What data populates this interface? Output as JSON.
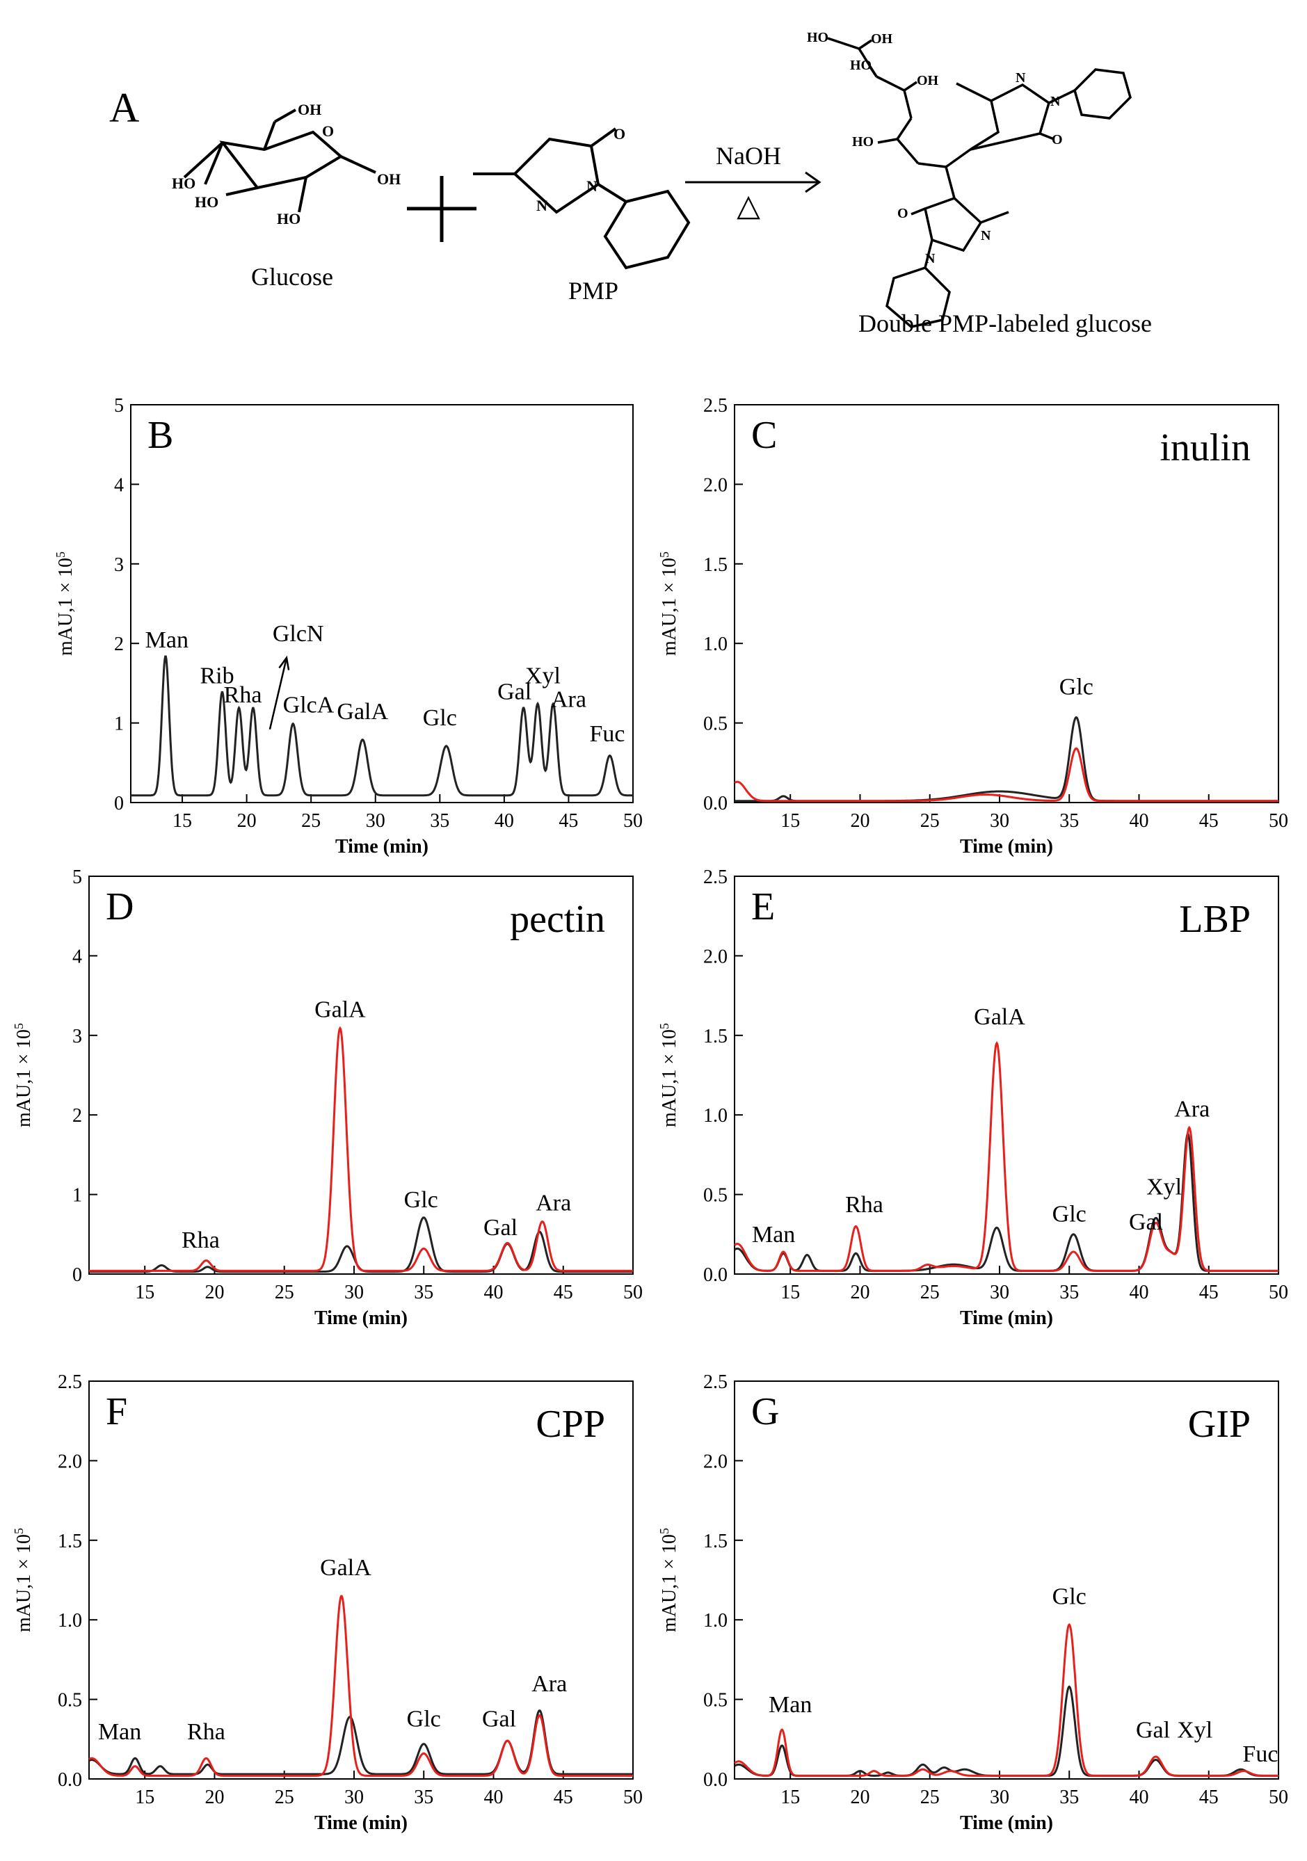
{
  "panelA": {
    "letter": "A",
    "glucose_label": "Glucose",
    "pmp_label": "PMP",
    "reagent": "NaOH",
    "heat_symbol": "△",
    "product_label": "Double PMP-labeled glucose",
    "atoms": {
      "oh": "OH",
      "ho": "HO",
      "o": "O",
      "n": "N"
    }
  },
  "colors": {
    "black_series": "#222222",
    "red_series": "#e8201c",
    "axis": "#000000"
  },
  "chart_data": [
    {
      "panel": "B",
      "type": "line",
      "title": "",
      "xlabel": "Time (min)",
      "ylabel_main": "mAU,1 × 10",
      "ylabel_exp": "5",
      "xlim": [
        11,
        50
      ],
      "ylim": [
        0,
        5
      ],
      "xticks": [
        15,
        20,
        25,
        30,
        35,
        40,
        45,
        50
      ],
      "yticks": [
        0,
        1,
        2,
        3,
        4,
        5
      ],
      "ytick_labels": [
        "0",
        "1",
        "2",
        "3",
        "4",
        "5"
      ],
      "baseline": {
        "black": 0.09
      },
      "series": [
        {
          "color": "black",
          "peaks": [
            [
              13.7,
              1.75,
              0.28
            ],
            [
              18.1,
              1.3,
              0.28
            ],
            [
              19.4,
              1.1,
              0.28
            ],
            [
              20.5,
              1.1,
              0.28
            ],
            [
              23.6,
              0.9,
              0.35
            ],
            [
              29,
              0.7,
              0.4
            ],
            [
              35.5,
              0.62,
              0.45
            ],
            [
              41.5,
              1.1,
              0.3
            ],
            [
              42.6,
              1.15,
              0.3
            ],
            [
              43.8,
              1.15,
              0.3
            ],
            [
              48.2,
              0.5,
              0.35
            ]
          ]
        }
      ],
      "annotations": [
        {
          "text": "Man",
          "x": 13.8,
          "y": 1.95
        },
        {
          "text": "Rib",
          "x": 17.7,
          "y": 1.5
        },
        {
          "text": "Rha",
          "x": 19.7,
          "y": 1.26
        },
        {
          "text": "GlcN",
          "x": 24.0,
          "y": 2.03
        },
        {
          "text": "GlcA",
          "x": 24.8,
          "y": 1.13
        },
        {
          "text": "GalA",
          "x": 29.0,
          "y": 1.05
        },
        {
          "text": "Glc",
          "x": 35.0,
          "y": 0.97
        },
        {
          "text": "Gal",
          "x": 40.8,
          "y": 1.3
        },
        {
          "text": "Xyl",
          "x": 43.0,
          "y": 1.5
        },
        {
          "text": "Ara",
          "x": 45.0,
          "y": 1.2
        },
        {
          "text": "Fuc",
          "x": 48.0,
          "y": 0.77
        }
      ],
      "arrow": {
        "from": [
          21.8,
          0.92
        ],
        "to": [
          23.1,
          1.82
        ]
      }
    },
    {
      "panel": "C",
      "type": "line",
      "title": "inulin",
      "xlabel": "Time (min)",
      "ylabel_main": "mAU,1 × 10",
      "ylabel_exp": "5",
      "xlim": [
        11,
        50
      ],
      "ylim": [
        0,
        2.5
      ],
      "xticks": [
        15,
        20,
        25,
        30,
        35,
        40,
        45,
        50
      ],
      "yticks": [
        0,
        0.5,
        1,
        1.5,
        2,
        2.5
      ],
      "ytick_labels": [
        "0.0",
        "0.5",
        "1.0",
        "1.5",
        "2.0",
        "2.5"
      ],
      "baseline": {
        "black": 0.01,
        "red": 0.01
      },
      "series": [
        {
          "color": "black",
          "peaks": [
            [
              14.5,
              0.03,
              0.3
            ],
            [
              30,
              0.06,
              2.5
            ],
            [
              35.5,
              0.52,
              0.45
            ]
          ]
        },
        {
          "color": "red",
          "peaks": [
            [
              11.2,
              0.12,
              0.6
            ],
            [
              29,
              0.04,
              1.8
            ],
            [
              35.5,
              0.33,
              0.45
            ]
          ]
        }
      ],
      "annotations": [
        {
          "text": "Glc",
          "x": 35.5,
          "y": 0.68
        }
      ]
    },
    {
      "panel": "D",
      "type": "line",
      "title": "pectin",
      "xlabel": "Time (min)",
      "ylabel_main": "mAU,1 × 10",
      "ylabel_exp": "5",
      "xlim": [
        11,
        50
      ],
      "ylim": [
        0,
        5
      ],
      "xticks": [
        15,
        20,
        25,
        30,
        35,
        40,
        45,
        50
      ],
      "yticks": [
        0,
        1,
        2,
        3,
        4,
        5
      ],
      "ytick_labels": [
        "0",
        "1",
        "2",
        "3",
        "4",
        "5"
      ],
      "baseline": {
        "black": 0.03,
        "red": 0.04
      },
      "series": [
        {
          "color": "black",
          "peaks": [
            [
              16.2,
              0.08,
              0.35
            ],
            [
              19.5,
              0.06,
              0.3
            ],
            [
              29.5,
              0.32,
              0.45
            ],
            [
              35,
              0.68,
              0.5
            ],
            [
              41,
              0.35,
              0.45
            ],
            [
              43.3,
              0.5,
              0.4
            ]
          ]
        },
        {
          "color": "red",
          "peaks": [
            [
              19.4,
              0.13,
              0.35
            ],
            [
              29,
              3.05,
              0.45
            ],
            [
              35,
              0.28,
              0.45
            ],
            [
              41,
              0.35,
              0.45
            ],
            [
              43.5,
              0.62,
              0.4
            ]
          ]
        }
      ],
      "annotations": [
        {
          "text": "GalA",
          "x": 29.0,
          "y": 3.23
        },
        {
          "text": "Rha",
          "x": 19.0,
          "y": 0.33
        },
        {
          "text": "Glc",
          "x": 34.8,
          "y": 0.84
        },
        {
          "text": "Gal",
          "x": 40.5,
          "y": 0.49
        },
        {
          "text": "Ara",
          "x": 44.3,
          "y": 0.8
        }
      ]
    },
    {
      "panel": "E",
      "type": "line",
      "title": "LBP",
      "xlabel": "Time (min)",
      "ylabel_main": "mAU,1 × 10",
      "ylabel_exp": "5",
      "xlim": [
        11,
        50
      ],
      "ylim": [
        0,
        2.5
      ],
      "xticks": [
        15,
        20,
        25,
        30,
        35,
        40,
        45,
        50
      ],
      "yticks": [
        0,
        0.5,
        1,
        1.5,
        2,
        2.5
      ],
      "ytick_labels": [
        "0.0",
        "0.5",
        "1.0",
        "1.5",
        "2.0",
        "2.5"
      ],
      "baseline": {
        "black": 0.02,
        "red": 0.02
      },
      "series": [
        {
          "color": "black",
          "peaks": [
            [
              11.2,
              0.14,
              0.6
            ],
            [
              14.5,
              0.11,
              0.3
            ],
            [
              16.2,
              0.1,
              0.3
            ],
            [
              19.7,
              0.11,
              0.3
            ],
            [
              26.7,
              0.04,
              1.2
            ],
            [
              29.8,
              0.27,
              0.45
            ],
            [
              35.3,
              0.23,
              0.45
            ],
            [
              41.2,
              0.33,
              0.45
            ],
            [
              42.3,
              0.1,
              0.4
            ],
            [
              43.5,
              0.86,
              0.35
            ]
          ]
        },
        {
          "color": "red",
          "peaks": [
            [
              11.2,
              0.17,
              0.6
            ],
            [
              14.5,
              0.12,
              0.3
            ],
            [
              19.7,
              0.28,
              0.35
            ],
            [
              24.8,
              0.03,
              0.4
            ],
            [
              26.7,
              0.03,
              1.2
            ],
            [
              29.8,
              1.43,
              0.45
            ],
            [
              35.3,
              0.12,
              0.45
            ],
            [
              41.2,
              0.3,
              0.45
            ],
            [
              42.3,
              0.1,
              0.4
            ],
            [
              43.6,
              0.9,
              0.38
            ]
          ]
        }
      ],
      "annotations": [
        {
          "text": "GalA",
          "x": 30.0,
          "y": 1.57
        },
        {
          "text": "Rha",
          "x": 20.3,
          "y": 0.39
        },
        {
          "text": "Man",
          "x": 13.8,
          "y": 0.2
        },
        {
          "text": "Glc",
          "x": 35.0,
          "y": 0.33
        },
        {
          "text": "Gal",
          "x": 40.5,
          "y": 0.28
        },
        {
          "text": "Xyl",
          "x": 41.8,
          "y": 0.5
        },
        {
          "text": "Ara",
          "x": 43.8,
          "y": 0.99
        }
      ]
    },
    {
      "panel": "F",
      "type": "line",
      "title": "CPP",
      "xlabel": "Time (min)",
      "ylabel_main": "mAU,1 × 10",
      "ylabel_exp": "5",
      "xlim": [
        11,
        50
      ],
      "ylim": [
        0,
        2.5
      ],
      "xticks": [
        15,
        20,
        25,
        30,
        35,
        40,
        45,
        50
      ],
      "yticks": [
        0,
        0.5,
        1,
        1.5,
        2,
        2.5
      ],
      "ytick_labels": [
        "0.0",
        "0.5",
        "1.0",
        "1.5",
        "2.0",
        "2.5"
      ],
      "baseline": {
        "black": 0.03,
        "red": 0.02
      },
      "series": [
        {
          "color": "black",
          "peaks": [
            [
              11.2,
              0.09,
              0.6
            ],
            [
              14.3,
              0.1,
              0.3
            ],
            [
              16.1,
              0.05,
              0.3
            ],
            [
              19.5,
              0.06,
              0.3
            ],
            [
              29.7,
              0.36,
              0.5
            ],
            [
              35,
              0.19,
              0.45
            ],
            [
              41,
              0.21,
              0.45
            ],
            [
              43.3,
              0.4,
              0.4
            ]
          ]
        },
        {
          "color": "red",
          "peaks": [
            [
              11.2,
              0.11,
              0.6
            ],
            [
              14.3,
              0.06,
              0.3
            ],
            [
              19.4,
              0.11,
              0.35
            ],
            [
              29.1,
              1.13,
              0.45
            ],
            [
              35,
              0.14,
              0.45
            ],
            [
              41,
              0.22,
              0.45
            ],
            [
              43.3,
              0.38,
              0.4
            ]
          ]
        }
      ],
      "annotations": [
        {
          "text": "GalA",
          "x": 29.4,
          "y": 1.28
        },
        {
          "text": "Man",
          "x": 13.2,
          "y": 0.25
        },
        {
          "text": "Rha",
          "x": 19.4,
          "y": 0.25
        },
        {
          "text": "Glc",
          "x": 35.0,
          "y": 0.33
        },
        {
          "text": "Gal",
          "x": 40.4,
          "y": 0.33
        },
        {
          "text": "Ara",
          "x": 44.0,
          "y": 0.55
        }
      ]
    },
    {
      "panel": "G",
      "type": "line",
      "title": "GIP",
      "xlabel": "Time (min)",
      "ylabel_main": "mAU,1 × 10",
      "ylabel_exp": "5",
      "xlim": [
        11,
        50
      ],
      "ylim": [
        0,
        2.5
      ],
      "xticks": [
        15,
        20,
        25,
        30,
        35,
        40,
        45,
        50
      ],
      "yticks": [
        0,
        0.5,
        1,
        1.5,
        2,
        2.5
      ],
      "ytick_labels": [
        "0.0",
        "0.5",
        "1.0",
        "1.5",
        "2.0",
        "2.5"
      ],
      "baseline": {
        "black": 0.02,
        "red": 0.02
      },
      "series": [
        {
          "color": "black",
          "peaks": [
            [
              11.3,
              0.07,
              0.6
            ],
            [
              14.4,
              0.19,
              0.3
            ],
            [
              20,
              0.03,
              0.3
            ],
            [
              22,
              0.02,
              0.3
            ],
            [
              24.5,
              0.07,
              0.4
            ],
            [
              26,
              0.05,
              0.4
            ],
            [
              27.5,
              0.04,
              0.6
            ],
            [
              35,
              0.56,
              0.4
            ],
            [
              41.2,
              0.1,
              0.45
            ],
            [
              47.3,
              0.04,
              0.45
            ]
          ]
        },
        {
          "color": "red",
          "peaks": [
            [
              11.3,
              0.09,
              0.6
            ],
            [
              14.4,
              0.29,
              0.3
            ],
            [
              21,
              0.03,
              0.3
            ],
            [
              24.5,
              0.04,
              0.4
            ],
            [
              26.5,
              0.03,
              0.5
            ],
            [
              35,
              0.95,
              0.45
            ],
            [
              41.2,
              0.12,
              0.45
            ],
            [
              47.5,
              0.03,
              0.45
            ]
          ]
        }
      ],
      "annotations": [
        {
          "text": "Glc",
          "x": 35.0,
          "y": 1.1
        },
        {
          "text": "Man",
          "x": 15.0,
          "y": 0.42
        },
        {
          "text": "Gal",
          "x": 41.0,
          "y": 0.26
        },
        {
          "text": "Xyl",
          "x": 44.0,
          "y": 0.26
        },
        {
          "text": "Fuc",
          "x": 48.7,
          "y": 0.11
        }
      ]
    }
  ]
}
